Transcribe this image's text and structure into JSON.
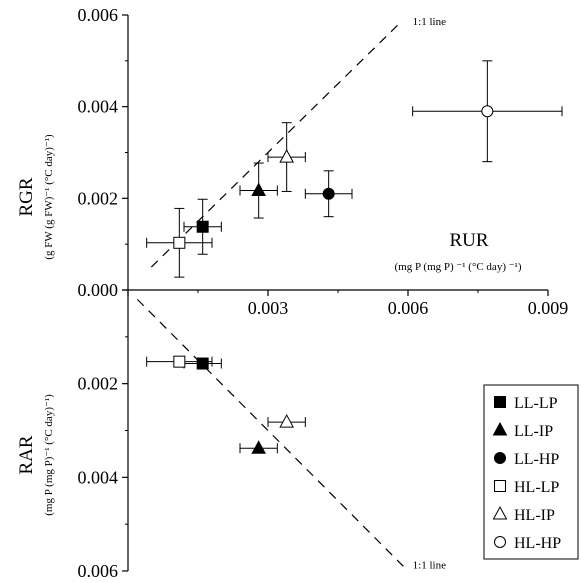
{
  "chart_data": {
    "type": "scatter",
    "top_panel": {
      "ylabel": "RGR",
      "ylabel_units": "(g FW (g FW)⁻¹ (°C day)⁻¹)",
      "xlabel": "RUR",
      "xlabel_units": "(mg P (mg P)  ⁻¹ (°C day)  ⁻¹)",
      "xlim": [
        0,
        0.009
      ],
      "ylim": [
        0,
        0.006
      ],
      "x_ticks": [
        "0.000",
        "0.003",
        "0.006",
        "0.009"
      ],
      "y_ticks": [
        "0.000",
        "0.002",
        "0.004",
        "0.006"
      ],
      "reference_line": "1:1 line",
      "points": [
        {
          "series": "LL-LP",
          "x": 0.0016,
          "y": 0.00138,
          "xerr": 0.0004,
          "yerr": 0.0006
        },
        {
          "series": "LL-IP",
          "x": 0.0028,
          "y": 0.00217,
          "xerr": 0.0004,
          "yerr": 0.0006
        },
        {
          "series": "LL-HP",
          "x": 0.0043,
          "y": 0.0021,
          "xerr": 0.0005,
          "yerr": 0.0005
        },
        {
          "series": "HL-LP",
          "x": 0.0011,
          "y": 0.00103,
          "xerr": 0.0007,
          "yerr": 0.00075
        },
        {
          "series": "HL-IP",
          "x": 0.0034,
          "y": 0.0029,
          "xerr": 0.0004,
          "yerr": 0.00075
        },
        {
          "series": "HL-HP",
          "x": 0.0077,
          "y": 0.0039,
          "xerr": 0.0016,
          "yerr": 0.0011
        }
      ]
    },
    "bottom_panel": {
      "ylabel": "RAR",
      "ylabel_units": "(mg P (mg P)⁻¹ (°C day)⁻¹)",
      "ylim": [
        0,
        0.006
      ],
      "y_ticks": [
        "0.000",
        "0.002",
        "0.004",
        "0.006"
      ],
      "reference_line": "1:1 line",
      "points": [
        {
          "series": "LL-LP",
          "x": 0.0016,
          "y": 0.00157,
          "xerr": 0.0004
        },
        {
          "series": "HL-LP",
          "x": 0.0011,
          "y": 0.00153,
          "xerr": 0.0007
        },
        {
          "series": "LL-IP",
          "x": 0.0028,
          "y": 0.00338,
          "xerr": 0.0004
        },
        {
          "series": "HL-IP",
          "x": 0.0034,
          "y": 0.00282,
          "xerr": 0.0004
        }
      ]
    },
    "legend": [
      {
        "name": "LL-LP",
        "marker": "square",
        "filled": true
      },
      {
        "name": "LL-IP",
        "marker": "triangle",
        "filled": true
      },
      {
        "name": "LL-HP",
        "marker": "circle",
        "filled": true
      },
      {
        "name": "HL-LP",
        "marker": "square",
        "filled": false
      },
      {
        "name": "HL-IP",
        "marker": "triangle",
        "filled": false
      },
      {
        "name": "HL-HP",
        "marker": "circle",
        "filled": false
      }
    ],
    "legend_position": "bottom-right",
    "colors": {
      "ink": "#000000",
      "background": "#ffffff"
    }
  }
}
